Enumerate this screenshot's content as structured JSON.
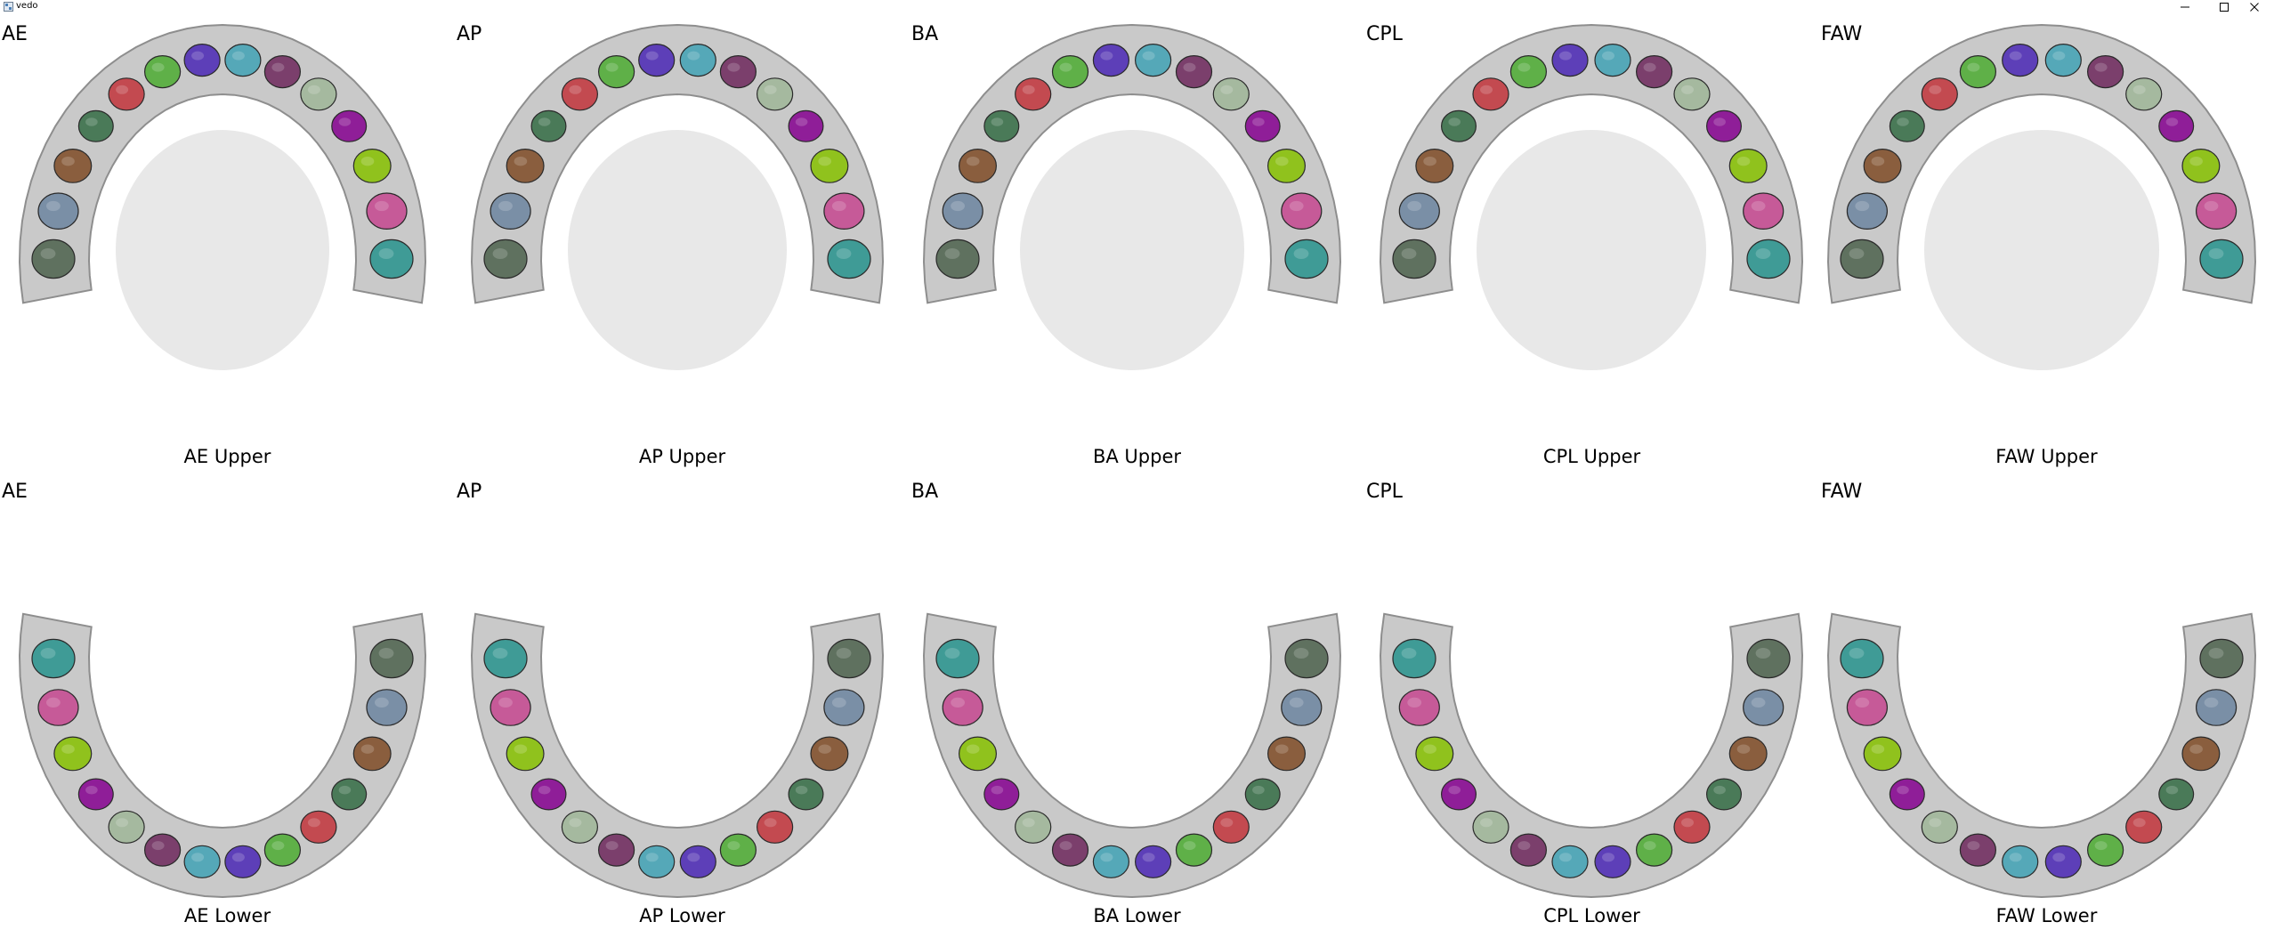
{
  "window": {
    "title": "vedo",
    "minimize_icon": "minimize-icon",
    "maximize_icon": "maximize-icon",
    "close_icon": "close-icon"
  },
  "colors": {
    "background": "#ffffff",
    "gum": "#c9c9c9",
    "gum_edge": "#8e8e8e",
    "teeth": [
      "#3f9b96",
      "#c65a98",
      "#90c21d",
      "#8f1e98",
      "#4a7a58",
      "#7a8fa6",
      "#8a5e3e",
      "#5f715f",
      "#c34a50",
      "#5d3fb8",
      "#55a8b8",
      "#7b3f6c",
      "#a5b99f",
      "#5fb048"
    ]
  },
  "panels": [
    {
      "corner": "AE",
      "caption": "AE Upper"
    },
    {
      "corner": "AP",
      "caption": "AP Upper"
    },
    {
      "corner": "BA",
      "caption": "BA Upper"
    },
    {
      "corner": "CPL",
      "caption": "CPL Upper"
    },
    {
      "corner": "FAW",
      "caption": "FAW Upper"
    },
    {
      "corner": "AE",
      "caption": "AE Lower"
    },
    {
      "corner": "AP",
      "caption": "AP Lower"
    },
    {
      "corner": "BA",
      "caption": "BA Lower"
    },
    {
      "corner": "CPL",
      "caption": "CPL Lower"
    },
    {
      "corner": "FAW",
      "caption": "FAW Lower"
    }
  ]
}
